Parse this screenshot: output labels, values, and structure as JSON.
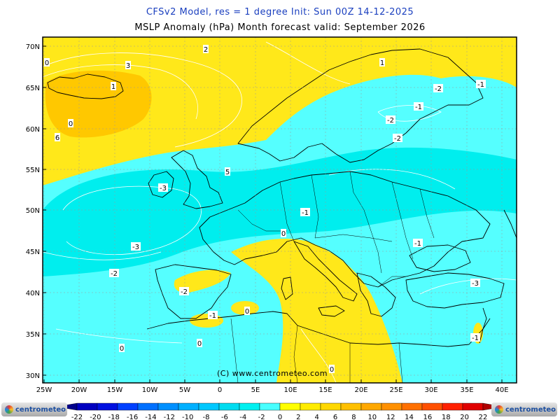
{
  "title_line1": "CFSv2 Model, res = 1 degree    Init: Sun 00Z 14-12-2025",
  "title_line2": "MSLP Anomaly (hPa)    Month forecast valid: September 2026",
  "credit": "(C) www.centrometeo.com",
  "brand": "centrometeo",
  "lat_labels": [
    "70N",
    "65N",
    "60N",
    "55N",
    "50N",
    "45N",
    "40N",
    "35N",
    "30N"
  ],
  "lon_labels": [
    "25W",
    "20W",
    "15W",
    "10W",
    "5W",
    "0",
    "5E",
    "10E",
    "15E",
    "20E",
    "25E",
    "30E",
    "35E",
    "40E"
  ],
  "contour_labels": [
    "0",
    "3",
    "2",
    "1",
    "0",
    "6",
    "5",
    "-2",
    "-1",
    "-2",
    "-3",
    "-3",
    "-2",
    "-1",
    "0",
    "-1",
    "-2",
    "-3",
    "-2",
    "-1",
    "0",
    "0",
    "0",
    "-1",
    "-1",
    "0",
    "1"
  ],
  "colorbar": {
    "labels": [
      "-22",
      "-20",
      "-18",
      "-16",
      "-14",
      "-12",
      "-10",
      "-8",
      "-6",
      "-4",
      "-2",
      "0",
      "2",
      "4",
      "6",
      "8",
      "10",
      "12",
      "14",
      "16",
      "18",
      "20",
      "22"
    ],
    "colors": [
      "#00008b",
      "#0000c0",
      "#0010e0",
      "#0040ff",
      "#0070ff",
      "#0090ff",
      "#00b0ff",
      "#00c8ff",
      "#00dcf0",
      "#00f0f0",
      "#48ffff",
      "#ffff00",
      "#ffec00",
      "#ffd800",
      "#ffc000",
      "#ffa800",
      "#ff9000",
      "#ff7000",
      "#ff5000",
      "#ff2000",
      "#e00000",
      "#b00000"
    ]
  },
  "colors": {
    "positive_fill": "#ffe81a",
    "anomaly_plus3": "#ffc800",
    "negative_fill": "#00eeee",
    "weak_negative": "#55ffff",
    "coast": "#000000",
    "contour": "#ffffff",
    "title_blue": "#1a3fbf"
  }
}
